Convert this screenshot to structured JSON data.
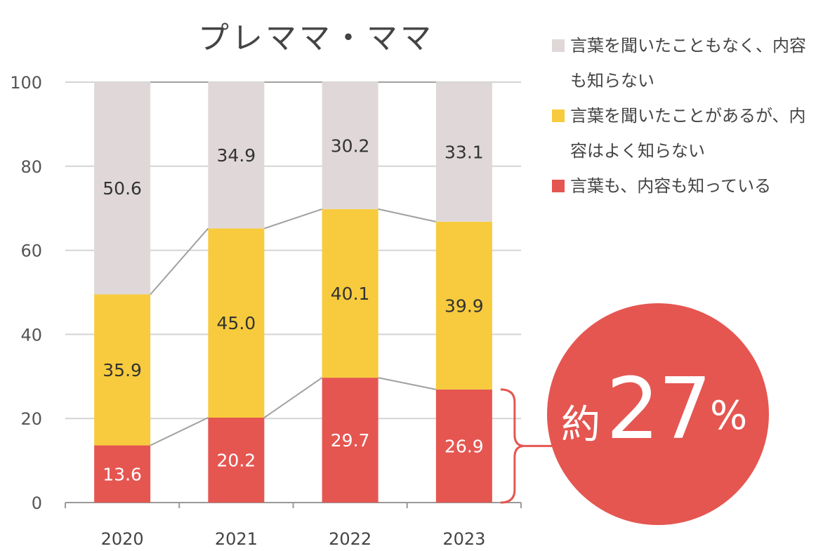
{
  "chart_data": {
    "type": "bar",
    "stacked": true,
    "title": "プレママ・ママ",
    "categories": [
      "2020",
      "2021",
      "2022",
      "2023"
    ],
    "ylim": [
      0,
      100
    ],
    "yticks": [
      "0",
      "20",
      "40",
      "60",
      "80",
      "100"
    ],
    "grid": true,
    "series": [
      {
        "name": "言葉も、内容も知っている",
        "color": "#E55651",
        "label_color": "#ffffff",
        "values": [
          13.6,
          20.2,
          29.7,
          26.9
        ],
        "labels": [
          "13.6",
          "20.2",
          "29.7",
          "26.9"
        ]
      },
      {
        "name": "言葉を聞いたことがあるが、内容はよく知らない",
        "color": "#F7CB3D",
        "label_color": "#333333",
        "values": [
          35.9,
          45.0,
          40.1,
          39.9
        ],
        "labels": [
          "35.9",
          "45.0",
          "40.1",
          "39.9"
        ]
      },
      {
        "name": "言葉を聞いたこともなく、内容も知らない",
        "color": "#E0D8D8",
        "label_color": "#333333",
        "values": [
          50.6,
          34.9,
          30.2,
          33.1
        ],
        "labels": [
          "50.6",
          "34.9",
          "30.2",
          "33.1"
        ]
      }
    ],
    "legend": [
      {
        "label": "言葉を聞いたこともなく、内容も知らない",
        "color": "#E0D8D8"
      },
      {
        "label": "言葉を聞いたことがあるが、内容はよく知らない",
        "color": "#F7CB3D"
      },
      {
        "label": "言葉も、内容も知っている",
        "color": "#E55651"
      }
    ],
    "legend_position": "top-right",
    "annotation": {
      "prefix": "約",
      "value": "27",
      "unit": "%",
      "color": "#E55651"
    }
  }
}
